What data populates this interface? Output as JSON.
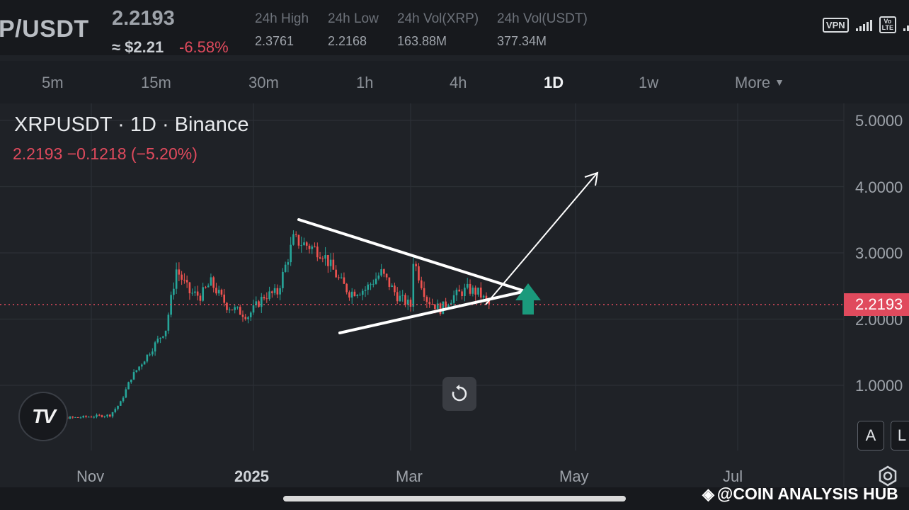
{
  "header": {
    "pair": "P/USDT",
    "price": "2.2193",
    "approx": "≈ $2.21",
    "change": "-6.58%",
    "stats": [
      {
        "label": "24h High",
        "value": "2.3761"
      },
      {
        "label": "24h Low",
        "value": "2.2168"
      },
      {
        "label": "24h Vol(XRP)",
        "value": "163.88M"
      },
      {
        "label": "24h Vol(USDT)",
        "value": "377.34M"
      }
    ],
    "status": {
      "vpn": "VPN",
      "volte": "Vo LTE"
    }
  },
  "timeframes": [
    "5m",
    "15m",
    "30m",
    "1h",
    "4h",
    "1D",
    "1w",
    "More"
  ],
  "active_timeframe": "1D",
  "chart": {
    "title": "XRPUSDT · 1D · Binance",
    "subtitle": "2.2193  −0.1218 (−5.20%)",
    "y_labels": [
      "5.0000",
      "4.0000",
      "3.0000",
      "2.0000",
      "1.0000"
    ],
    "x_labels": [
      "Nov",
      "2025",
      "Mar",
      "May",
      "Jul"
    ],
    "price_tag": "2.2193",
    "scale_buttons": [
      "A",
      "L"
    ]
  },
  "colors": {
    "up": "#26a69a",
    "down": "#ef5350",
    "accent_red": "#e04a5d",
    "arrow_green": "#1a9a7c"
  },
  "icons": [
    "tradingview-logo-icon",
    "reset-chart-icon",
    "settings-gear-icon",
    "vpn-icon",
    "signal-icon"
  ],
  "watermark": "@COIN ANALYSIS HUB",
  "chart_data": {
    "type": "candlestick",
    "title": "XRPUSDT · 1D · Binance",
    "x_labels": [
      "Nov",
      "2025",
      "Mar",
      "May",
      "Jul"
    ],
    "y_ticks": [
      1,
      2,
      3,
      4,
      5
    ],
    "ylim": [
      0.0,
      5.0
    ],
    "last_price": 2.2193,
    "period_change": -0.1218,
    "period_change_pct": -5.2,
    "pattern": "symmetrical triangle with projected breakout arrow",
    "series_path": [
      {
        "date": "2024-10-08",
        "close": 0.53
      },
      {
        "date": "2024-10-25",
        "close": 0.51
      },
      {
        "date": "2024-11-08",
        "close": 0.55
      },
      {
        "date": "2024-11-12",
        "close": 0.74
      },
      {
        "date": "2024-11-16",
        "close": 1.12
      },
      {
        "date": "2024-11-22",
        "close": 1.45
      },
      {
        "date": "2024-11-29",
        "close": 1.85
      },
      {
        "date": "2024-12-03",
        "close": 2.75
      },
      {
        "date": "2024-12-08",
        "close": 2.4
      },
      {
        "date": "2024-12-12",
        "close": 2.35
      },
      {
        "date": "2024-12-16",
        "close": 2.55
      },
      {
        "date": "2024-12-22",
        "close": 2.2
      },
      {
        "date": "2024-12-30",
        "close": 2.05
      },
      {
        "date": "2025-01-05",
        "close": 2.35
      },
      {
        "date": "2025-01-10",
        "close": 2.4
      },
      {
        "date": "2025-01-16",
        "close": 3.2
      },
      {
        "date": "2025-01-22",
        "close": 3.1
      },
      {
        "date": "2025-01-27",
        "close": 3.0
      },
      {
        "date": "2025-02-02",
        "close": 2.6
      },
      {
        "date": "2025-02-06",
        "close": 2.4
      },
      {
        "date": "2025-02-12",
        "close": 2.45
      },
      {
        "date": "2025-02-18",
        "close": 2.7
      },
      {
        "date": "2025-02-24",
        "close": 2.35
      },
      {
        "date": "2025-03-01",
        "close": 2.2
      },
      {
        "date": "2025-03-02",
        "close": 2.9
      },
      {
        "date": "2025-03-07",
        "close": 2.3
      },
      {
        "date": "2025-03-12",
        "close": 2.15
      },
      {
        "date": "2025-03-17",
        "close": 2.35
      },
      {
        "date": "2025-03-22",
        "close": 2.45
      },
      {
        "date": "2025-03-26",
        "close": 2.4
      },
      {
        "date": "2025-03-30",
        "close": 2.2193
      }
    ]
  }
}
